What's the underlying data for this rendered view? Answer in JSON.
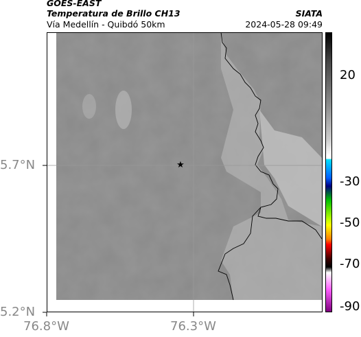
{
  "header": {
    "satellite": "GOES-EAST",
    "product": "Temperatura de Brillo CH13",
    "route": "Vía Medellín - Quibdó 50km",
    "source": "SIATA",
    "datetime": "2024-05-28 09:49"
  },
  "map": {
    "lat_labels": [
      "5.7°N",
      "5.2°N"
    ],
    "lon_labels": [
      "76.8°W",
      "76.3°W"
    ]
  },
  "colorbar": {
    "labels": [
      "20",
      "-30",
      "-50",
      "-70",
      "-90"
    ]
  }
}
